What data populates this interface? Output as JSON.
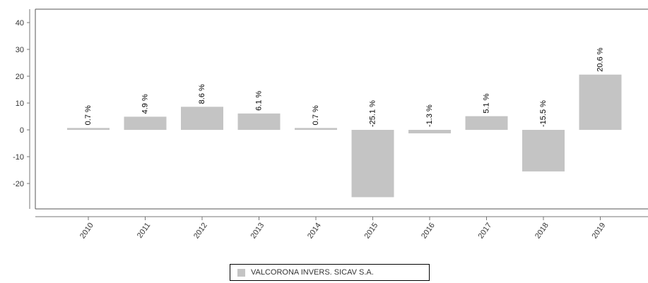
{
  "chart_data": {
    "type": "bar",
    "categories": [
      "2010",
      "2011",
      "2012",
      "2013",
      "2014",
      "2015",
      "2016",
      "2017",
      "2018",
      "2019"
    ],
    "series": [
      {
        "name": "VALCORONA INVERS. SICAV S.A.",
        "values": [
          0.7,
          4.9,
          8.6,
          6.1,
          0.7,
          -25.1,
          -1.3,
          5.1,
          -15.5,
          20.6
        ],
        "labels": [
          "0.7 %",
          "4.9 %",
          "8.6 %",
          "6.1 %",
          "0.7 %",
          "-25.1 %",
          "-1.3 %",
          "5.1 %",
          "-15.5 %",
          "20.6 %"
        ]
      }
    ],
    "ylim": [
      -30,
      40
    ],
    "yticks": [
      "40",
      "30",
      "20",
      "10",
      "0",
      "-10",
      "-20"
    ],
    "ytick_values": [
      40,
      30,
      20,
      10,
      0,
      -10,
      -20
    ],
    "grid": false,
    "legend_position": "bottom-center",
    "bar_color": "#c4c4c4"
  }
}
